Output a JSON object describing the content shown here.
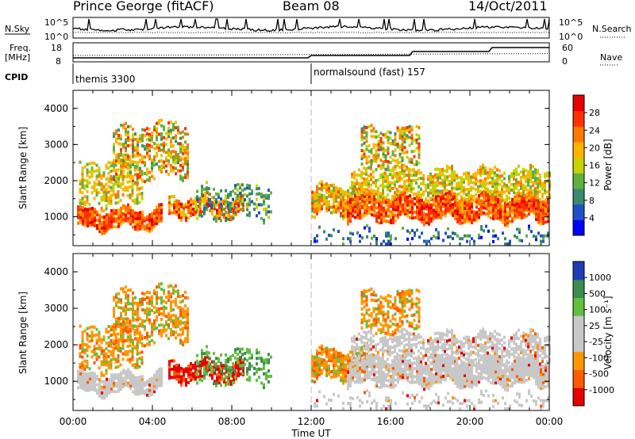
{
  "header": {
    "title": "Prince George (fitACF)",
    "beam": "Beam 08",
    "date": "14/Oct/2011"
  },
  "top_panel": {
    "left_label": "N.Sky",
    "left_ticks": [
      "10^5",
      "10^0"
    ],
    "right_ticks": [
      "10^5",
      "10^0"
    ],
    "right_label": "N.Search"
  },
  "freq_panel": {
    "left_label_1": "Freq.",
    "left_label_2": "[MHz]",
    "left_ticks": [
      "18",
      "8"
    ],
    "right_ticks": [
      "60",
      "0"
    ],
    "right_label": "Nave"
  },
  "cpid": {
    "label": "CPID",
    "segments": [
      {
        "name": "themis 3300",
        "start_hour": 0
      },
      {
        "name": "normalsound (fast) 157",
        "start_hour": 12
      }
    ]
  },
  "colors": {
    "power_scale": [
      "#0000ff",
      "#2050c8",
      "#3a8a70",
      "#60b040",
      "#c8d200",
      "#ffb400",
      "#ff7800",
      "#ff3000",
      "#e60000"
    ],
    "velocity_scale": [
      "#e60000",
      "#ff5a00",
      "#ff9600",
      "#c8c8c8",
      "#c8c8c8",
      "#60c040",
      "#3c8c50",
      "#1e3cb4"
    ]
  },
  "chart_data": [
    {
      "type": "heatmap",
      "title": "",
      "ylabel": "Slant Range [km]",
      "xlabel": "",
      "ylim": [
        200,
        4500
      ],
      "yticks": [
        "1000",
        "2000",
        "3000",
        "4000"
      ],
      "xticks": [
        "00:00",
        "04:00",
        "08:00",
        "12:00",
        "16:00",
        "20:00",
        "00:00"
      ],
      "colorbar": {
        "label": "Power [dB]",
        "ticks": [
          "4",
          "8",
          "12",
          "16",
          "20",
          "24",
          "28"
        ],
        "range": [
          0,
          32
        ]
      }
    },
    {
      "type": "heatmap",
      "title": "",
      "ylabel": "Slant Range [km]",
      "xlabel": "Time UT",
      "ylim": [
        200,
        4500
      ],
      "yticks": [
        "1000",
        "2000",
        "3000",
        "4000"
      ],
      "xticks": [
        "00:00",
        "04:00",
        "08:00",
        "12:00",
        "16:00",
        "20:00",
        "00:00"
      ],
      "colorbar": {
        "label": "Velocity [m s⁻¹]",
        "ticks": [
          "1000",
          "500",
          "100",
          "25",
          "-25",
          "-100",
          "-500",
          "-1000"
        ]
      }
    }
  ]
}
